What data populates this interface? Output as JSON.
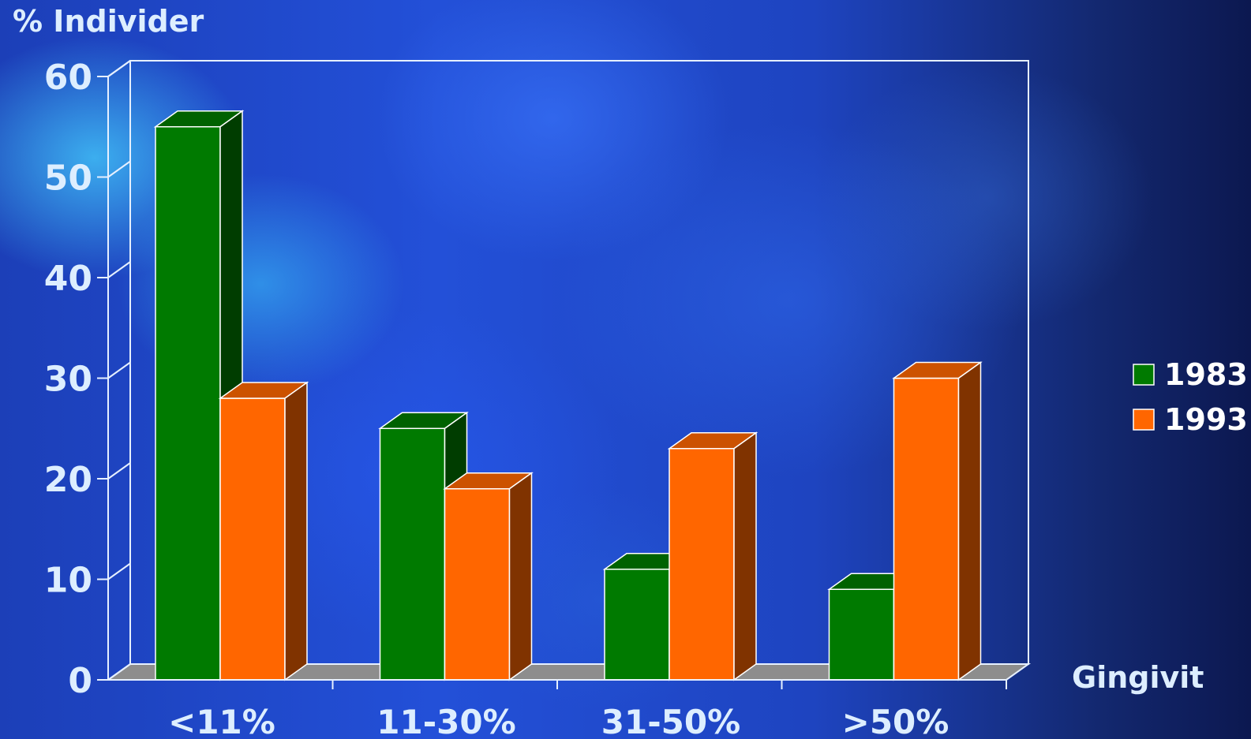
{
  "chart_data": {
    "type": "bar",
    "ylabel": "% Individer",
    "xlabel": "Gingivit",
    "categories": [
      "<11%",
      "11-30%",
      "31-50%",
      ">50%"
    ],
    "series": [
      {
        "name": "1983",
        "values": [
          55,
          25,
          11,
          9
        ],
        "color": "#007a00"
      },
      {
        "name": "1993",
        "values": [
          28,
          19,
          23,
          30
        ],
        "color": "#ff6600"
      }
    ],
    "ylim": [
      0,
      60
    ],
    "yticks": [
      0,
      10,
      20,
      30,
      40,
      50,
      60
    ],
    "legend": "right",
    "grid": false,
    "style": "3d"
  }
}
